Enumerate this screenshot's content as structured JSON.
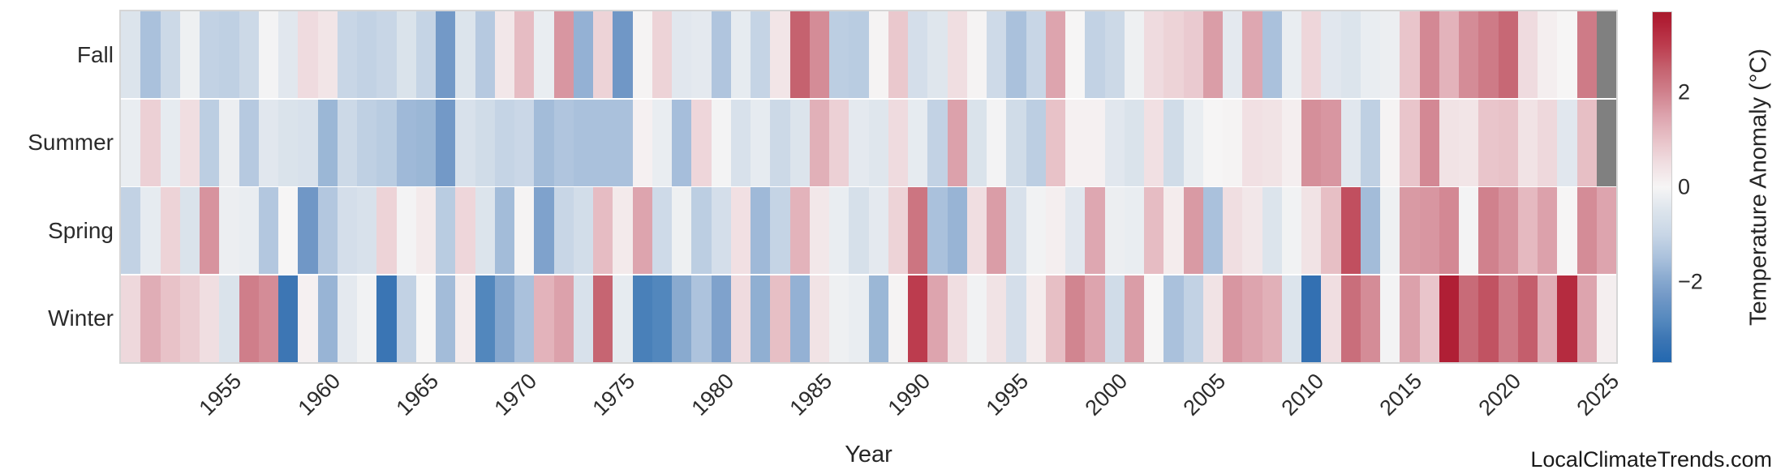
{
  "page": {
    "watermark": "LocalClimateTrends.com"
  },
  "chart_data": {
    "type": "heatmap",
    "title": "",
    "xlabel": "Year",
    "x_start": 1950,
    "x_end": 2025,
    "x_ticks": [
      1955,
      1960,
      1965,
      1970,
      1975,
      1980,
      1985,
      1990,
      1995,
      2000,
      2005,
      2010,
      2015,
      2020,
      2025
    ],
    "rows": [
      "Fall",
      "Summer",
      "Spring",
      "Winter"
    ],
    "series": [
      {
        "name": "Fall",
        "values": [
          -0.5,
          -1.5,
          -0.9,
          -0.15,
          -1.1,
          -1.15,
          -0.9,
          -0.05,
          -0.4,
          0.55,
          0.35,
          -1.0,
          -1.1,
          -1.0,
          -0.55,
          -1.05,
          -2.3,
          -0.5,
          -1.3,
          0.3,
          1.1,
          -0.25,
          1.7,
          -1.8,
          0.7,
          -2.35,
          0.05,
          0.7,
          -0.4,
          -0.35,
          -1.4,
          -0.3,
          -1.05,
          0.35,
          2.5,
          1.85,
          -1.2,
          -1.25,
          0.05,
          0.9,
          -0.7,
          -0.45,
          0.5,
          0.05,
          -0.85,
          -1.5,
          -1.0,
          1.5,
          0.0,
          -1.1,
          -0.9,
          -0.15,
          0.55,
          0.7,
          0.85,
          1.6,
          -0.35,
          1.45,
          -1.5,
          -0.25,
          0.65,
          -0.4,
          -0.5,
          -0.25,
          -0.2,
          0.95,
          1.9,
          1.25,
          1.85,
          2.1,
          2.4,
          0.55,
          0.15,
          0.0,
          2.1,
          null
        ]
      },
      {
        "name": "Summer",
        "values": [
          -0.25,
          0.75,
          -0.3,
          0.5,
          -1.2,
          -0.2,
          -1.3,
          -0.4,
          -0.55,
          -0.6,
          -1.7,
          -0.9,
          -1.15,
          -1.25,
          -1.65,
          -1.7,
          -2.3,
          -0.6,
          -0.8,
          -1.05,
          -0.95,
          -1.6,
          -1.4,
          -1.5,
          -1.5,
          -1.5,
          0.1,
          -0.25,
          -1.55,
          0.65,
          -0.05,
          -0.6,
          -0.3,
          -0.9,
          -0.5,
          1.3,
          0.75,
          -0.35,
          -0.45,
          0.55,
          -0.3,
          -1.1,
          1.55,
          -0.55,
          -0.05,
          -0.8,
          -1.2,
          1.0,
          0.1,
          0.1,
          -0.4,
          -0.55,
          0.45,
          -0.8,
          -0.25,
          0.0,
          0.05,
          0.45,
          0.4,
          0.15,
          1.8,
          1.7,
          -0.4,
          -1.15,
          0.05,
          0.95,
          1.9,
          0.4,
          0.35,
          0.95,
          1.0,
          0.4,
          0.6,
          -0.4,
          1.05,
          null
        ]
      },
      {
        "name": "Spring",
        "values": [
          -1.1,
          -0.3,
          0.7,
          -0.55,
          1.75,
          -0.2,
          -0.25,
          -1.35,
          0.0,
          -2.35,
          -1.35,
          -0.7,
          -0.6,
          0.7,
          -0.05,
          0.25,
          -1.25,
          0.65,
          -0.5,
          -1.6,
          0.05,
          -2.1,
          -1.0,
          -0.75,
          1.1,
          0.25,
          1.5,
          -0.85,
          -0.15,
          -1.2,
          -0.7,
          0.45,
          -1.65,
          -1.05,
          1.25,
          0.3,
          -0.25,
          -0.65,
          -0.35,
          0.7,
          2.2,
          -1.5,
          -1.75,
          0.5,
          1.6,
          -0.6,
          -0.1,
          0.15,
          -0.4,
          1.45,
          -0.2,
          -0.25,
          1.1,
          0.2,
          1.65,
          -1.5,
          0.5,
          0.3,
          -0.5,
          -0.1,
          0.4,
          1.05,
          2.75,
          -1.6,
          -0.15,
          1.65,
          1.7,
          1.9,
          -0.05,
          2.0,
          1.75,
          1.15,
          1.55,
          0.0,
          1.85,
          1.5
        ]
      },
      {
        "name": "Winter",
        "values": [
          0.6,
          1.35,
          1.0,
          0.8,
          0.5,
          -0.55,
          2.05,
          1.85,
          -3.2,
          0.1,
          -1.75,
          -0.35,
          -0.1,
          -3.25,
          -1.1,
          0.0,
          -1.6,
          0.2,
          -2.85,
          -2.0,
          -1.5,
          1.25,
          1.55,
          -0.6,
          2.45,
          -0.3,
          -3.0,
          -2.85,
          -1.95,
          -1.45,
          -2.1,
          0.55,
          -1.85,
          1.05,
          -1.8,
          0.4,
          -0.15,
          -0.25,
          -1.7,
          0.05,
          3.0,
          1.5,
          0.5,
          -0.1,
          0.4,
          -0.7,
          0.2,
          1.05,
          1.95,
          1.5,
          -0.8,
          1.6,
          0.0,
          -1.5,
          -1.1,
          0.4,
          1.7,
          1.5,
          1.3,
          -0.5,
          -3.4,
          0.5,
          2.3,
          1.85,
          -0.05,
          1.55,
          0.95,
          3.5,
          2.35,
          2.7,
          2.1,
          2.55,
          1.35,
          3.3,
          1.5,
          0.15
        ]
      }
    ],
    "missing_color": "#808080",
    "colorbar": {
      "label": "Temperature Anomaly (°C)",
      "ticks": [
        2,
        0,
        -2
      ],
      "vmin": -3.7,
      "vmax": 3.7
    },
    "colorscale": [
      [
        -3.7,
        "#2368b0"
      ],
      [
        -3.2,
        "#3d76b4"
      ],
      [
        -2.85,
        "#5287bd"
      ],
      [
        -2.3,
        "#7399c7"
      ],
      [
        -2.0,
        "#85a7ce"
      ],
      [
        -1.5,
        "#aac1dc"
      ],
      [
        -1.0,
        "#c8d6e6"
      ],
      [
        -0.5,
        "#dce4ec"
      ],
      [
        0.0,
        "#f6f5f5"
      ],
      [
        0.5,
        "#f0dee1"
      ],
      [
        1.0,
        "#e8c2c8"
      ],
      [
        1.5,
        "#dda4ae"
      ],
      [
        2.0,
        "#d0818d"
      ],
      [
        2.5,
        "#c5626f"
      ],
      [
        3.0,
        "#bc3c4e"
      ],
      [
        3.5,
        "#b01f35"
      ],
      [
        3.7,
        "#a91b2d"
      ]
    ]
  }
}
